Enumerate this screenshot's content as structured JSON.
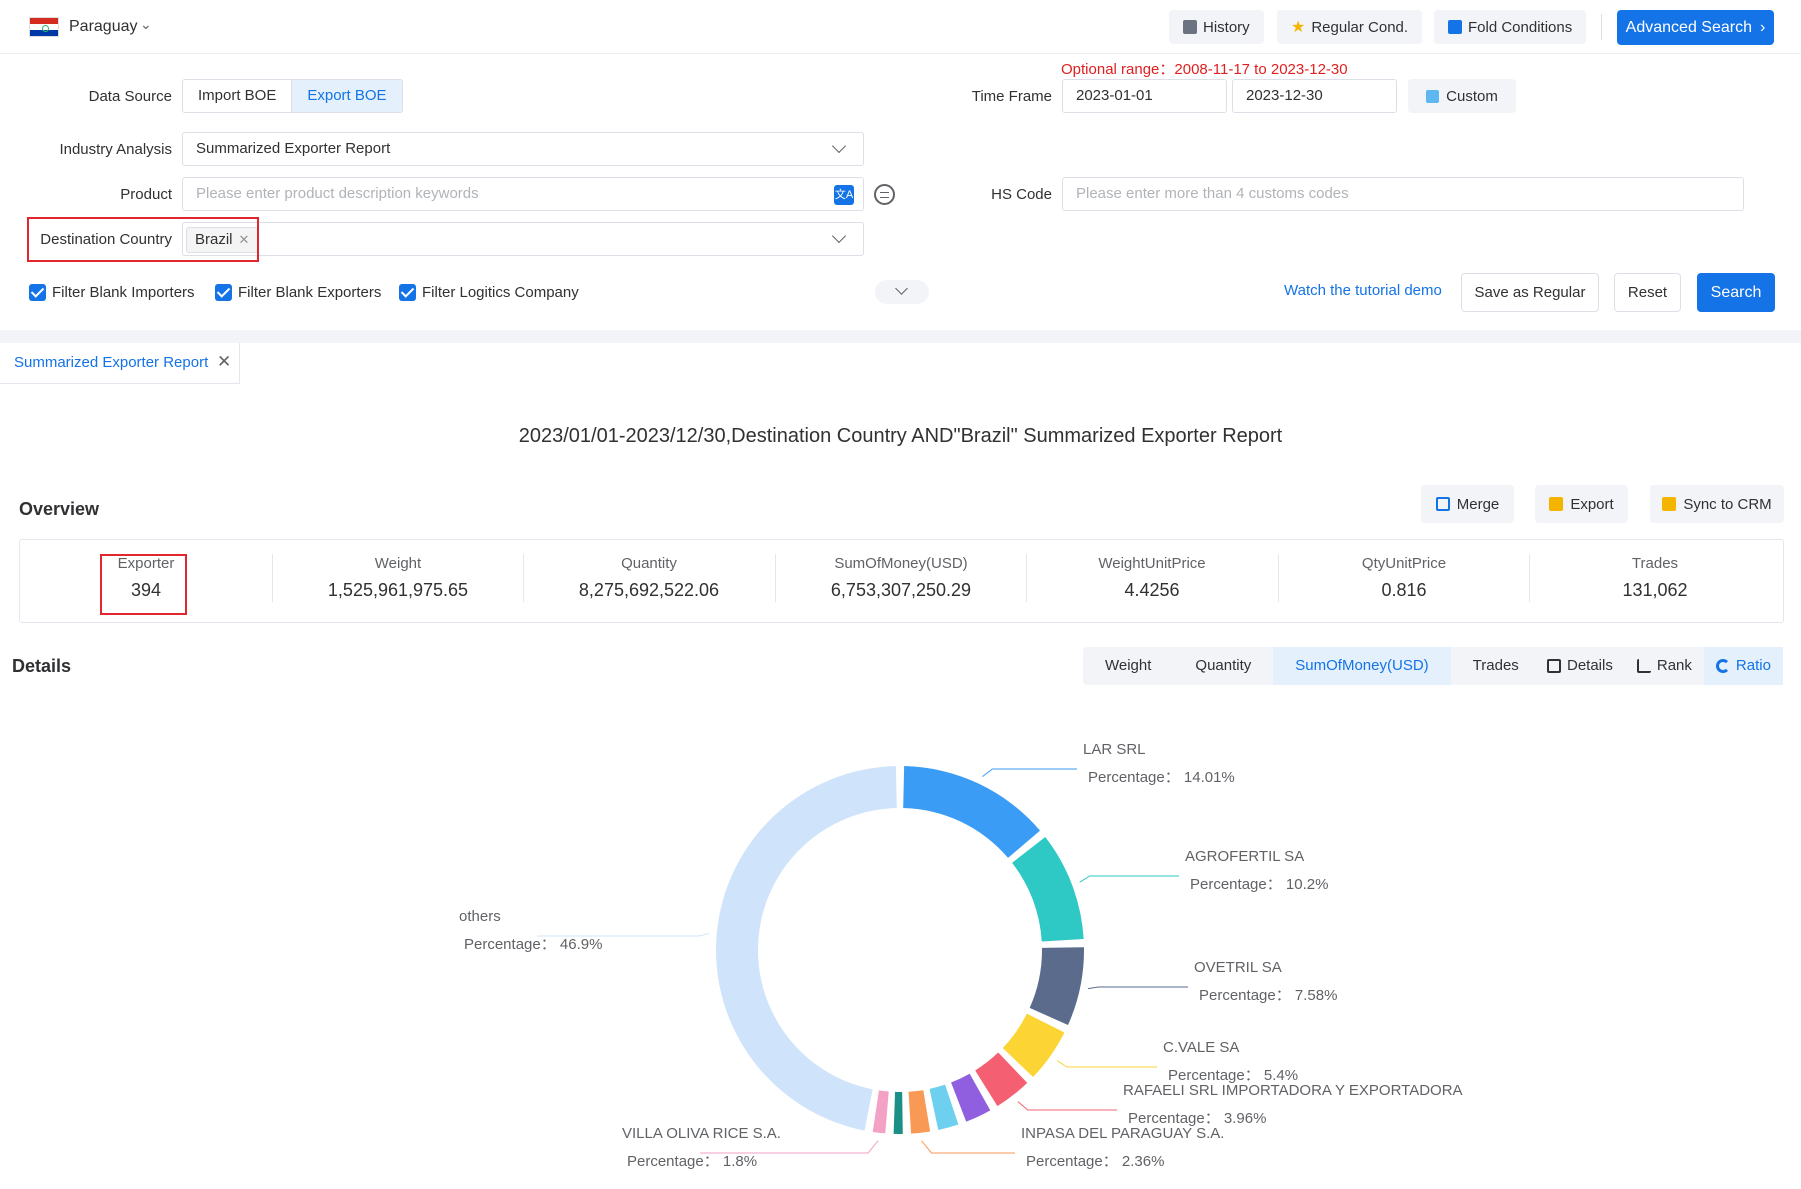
{
  "header": {
    "country": "Paraguay",
    "history": "History",
    "regular_cond": "Regular Cond.",
    "fold_conditions": "Fold Conditions",
    "advanced_search": "Advanced Search"
  },
  "form": {
    "data_source_label": "Data Source",
    "data_source_options": [
      "Import BOE",
      "Export BOE"
    ],
    "data_source_selected": "Export BOE",
    "optional_range": "Optional range：2008-11-17 to 2023-12-30",
    "time_frame_label": "Time Frame",
    "time_start": "2023-01-01",
    "time_end": "2023-12-30",
    "custom": "Custom",
    "industry_label": "Industry Analysis",
    "industry_value": "Summarized Exporter Report",
    "product_label": "Product",
    "product_placeholder": "Please enter product description keywords",
    "hs_label": "HS Code",
    "hs_placeholder": "Please enter more than 4 customs codes",
    "destination_label": "Destination Country",
    "destination_tag": "Brazil",
    "filters": [
      "Filter Blank Importers",
      "Filter Blank Exporters",
      "Filter Logitics Company"
    ],
    "tutorial_link": "Watch the tutorial demo",
    "save_regular": "Save as Regular",
    "reset": "Reset",
    "search": "Search"
  },
  "tab": {
    "label": "Summarized Exporter Report"
  },
  "report_title": "2023/01/01-2023/12/30,Destination Country AND\"Brazil\" Summarized Exporter Report",
  "overview": {
    "title": "Overview",
    "actions": [
      "Merge",
      "Export",
      "Sync to CRM"
    ],
    "stats": [
      {
        "label": "Exporter",
        "value": "394"
      },
      {
        "label": "Weight",
        "value": "1,525,961,975.65"
      },
      {
        "label": "Quantity",
        "value": "8,275,692,522.06"
      },
      {
        "label": "SumOfMoney(USD)",
        "value": "6,753,307,250.29"
      },
      {
        "label": "WeightUnitPrice",
        "value": "4.4256"
      },
      {
        "label": "QtyUnitPrice",
        "value": "0.816"
      },
      {
        "label": "Trades",
        "value": "131,062"
      }
    ]
  },
  "details": {
    "title": "Details",
    "metrics": [
      "Weight",
      "Quantity",
      "SumOfMoney(USD)",
      "Trades"
    ],
    "metric_selected": "SumOfMoney(USD)",
    "views": [
      "Details",
      "Rank",
      "Ratio"
    ],
    "view_selected": "Ratio"
  },
  "colors": {
    "accent": "#1473e6",
    "highlight": "#e0262e"
  },
  "chart_data": {
    "type": "pie",
    "variant": "donut",
    "value_label": "Percentage",
    "slices": [
      {
        "name": "LAR SRL",
        "value": 14.01,
        "display": "14.01%",
        "color": "#3a9cf5",
        "labeled": true
      },
      {
        "name": "AGROFERTIL SA",
        "value": 10.2,
        "display": "10.2%",
        "color": "#2ec9c4",
        "labeled": true
      },
      {
        "name": "OVETRIL SA",
        "value": 7.58,
        "display": "7.58%",
        "color": "#5a6b8c",
        "labeled": true
      },
      {
        "name": "C.VALE SA",
        "value": 5.4,
        "display": "5.4%",
        "color": "#fcd535",
        "labeled": true
      },
      {
        "name": "RAFAELI SRL IMPORTADORA Y EXPORTADORA",
        "value": 3.96,
        "display": "3.96%",
        "color": "#f46071",
        "labeled": true
      },
      {
        "name": "",
        "value": 3.0,
        "display": "",
        "color": "#8f5fe0",
        "labeled": false
      },
      {
        "name": "",
        "value": 2.5,
        "display": "",
        "color": "#6ed0ef",
        "labeled": false
      },
      {
        "name": "INPASA DEL PARAGUAY S.A.",
        "value": 2.36,
        "display": "2.36%",
        "color": "#f89a55",
        "labeled": true
      },
      {
        "name": "",
        "value": 1.5,
        "display": "",
        "color": "#1c8f87",
        "labeled": false
      },
      {
        "name": "VILLA OLIVA RICE S.A.",
        "value": 1.8,
        "display": "1.8%",
        "color": "#f3a1c4",
        "labeled": true
      },
      {
        "name": "others",
        "value": 46.9,
        "display": "46.9%",
        "color": "#cfe4fb",
        "labeled": true
      }
    ]
  }
}
